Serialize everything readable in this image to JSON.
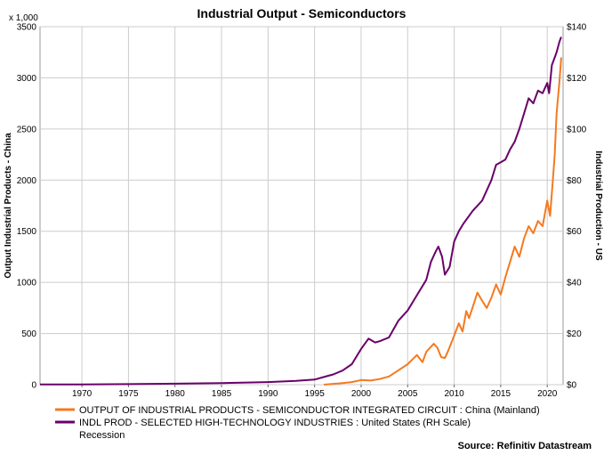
{
  "chart_data": {
    "type": "line",
    "title": "Industrial Output - Semiconductors",
    "ylabel_left": "Output Industrial Products - China",
    "ylabel_right": "Industrial Production - US",
    "left_multiplier": "x 1,000",
    "source": "Source: Refinitiv Datastream",
    "x_range": [
      1965.5,
      2021.7
    ],
    "x_ticks": [
      "1970",
      "1975",
      "1980",
      "1985",
      "1990",
      "1995",
      "2000",
      "2005",
      "2010",
      "2015",
      "2020"
    ],
    "ylim_left": [
      0,
      3500
    ],
    "y_ticks_left": [
      "0",
      "500",
      "1000",
      "1500",
      "2000",
      "2500",
      "3000",
      "3500"
    ],
    "ylim_right": [
      0,
      140
    ],
    "y_ticks_right": [
      "$0",
      "$20",
      "$40",
      "$60",
      "$80",
      "$100",
      "$120",
      "$140"
    ],
    "grid": true,
    "legend_position": "bottom",
    "series": [
      {
        "name": "OUTPUT OF INDUSTRIAL PRODUCTS - SEMICONDUCTOR INTEGRATED CIRCUIT : China (Mainland)",
        "axis": "left",
        "color": "#f47920",
        "points": [
          [
            1996.0,
            0
          ],
          [
            1997.0,
            8
          ],
          [
            1998.0,
            15
          ],
          [
            1999.0,
            25
          ],
          [
            2000.0,
            45
          ],
          [
            2001.0,
            40
          ],
          [
            2002.0,
            55
          ],
          [
            2003.0,
            80
          ],
          [
            2004.0,
            140
          ],
          [
            2005.0,
            200
          ],
          [
            2006.0,
            290
          ],
          [
            2006.6,
            220
          ],
          [
            2007.0,
            320
          ],
          [
            2007.8,
            400
          ],
          [
            2008.2,
            360
          ],
          [
            2008.6,
            270
          ],
          [
            2009.0,
            260
          ],
          [
            2009.4,
            340
          ],
          [
            2010.0,
            480
          ],
          [
            2010.5,
            600
          ],
          [
            2010.9,
            520
          ],
          [
            2011.3,
            720
          ],
          [
            2011.6,
            650
          ],
          [
            2012.0,
            760
          ],
          [
            2012.5,
            900
          ],
          [
            2013.0,
            820
          ],
          [
            2013.5,
            750
          ],
          [
            2014.0,
            850
          ],
          [
            2014.5,
            980
          ],
          [
            2015.0,
            880
          ],
          [
            2015.5,
            1050
          ],
          [
            2016.0,
            1200
          ],
          [
            2016.5,
            1350
          ],
          [
            2017.0,
            1250
          ],
          [
            2017.5,
            1430
          ],
          [
            2018.0,
            1550
          ],
          [
            2018.5,
            1480
          ],
          [
            2019.0,
            1600
          ],
          [
            2019.5,
            1550
          ],
          [
            2020.0,
            1800
          ],
          [
            2020.3,
            1650
          ],
          [
            2020.6,
            2000
          ],
          [
            2020.8,
            2250
          ],
          [
            2021.0,
            2650
          ],
          [
            2021.1,
            2750
          ],
          [
            2021.3,
            2950
          ],
          [
            2021.5,
            3200
          ]
        ]
      },
      {
        "name": "INDL PROD - SELECTED HIGH-TECHNOLOGY INDUSTRIES : United States (RH Scale)",
        "axis": "right",
        "color": "#6a006a",
        "points": [
          [
            1965.5,
            0.1
          ],
          [
            1970.0,
            0.1
          ],
          [
            1975.0,
            0.2
          ],
          [
            1980.0,
            0.4
          ],
          [
            1985.0,
            0.6
          ],
          [
            1990.0,
            1.0
          ],
          [
            1993.0,
            1.5
          ],
          [
            1995.0,
            2.0
          ],
          [
            1996.0,
            3.0
          ],
          [
            1997.0,
            4.0
          ],
          [
            1998.0,
            5.5
          ],
          [
            1999.0,
            8.0
          ],
          [
            2000.0,
            14.0
          ],
          [
            2000.8,
            18.0
          ],
          [
            2001.5,
            16.5
          ],
          [
            2002.0,
            17.0
          ],
          [
            2003.0,
            18.5
          ],
          [
            2004.0,
            25.0
          ],
          [
            2005.0,
            29.0
          ],
          [
            2006.0,
            35.0
          ],
          [
            2007.0,
            41.0
          ],
          [
            2007.5,
            48.0
          ],
          [
            2008.0,
            52.0
          ],
          [
            2008.3,
            54.0
          ],
          [
            2008.7,
            50.0
          ],
          [
            2009.0,
            43.0
          ],
          [
            2009.5,
            46.0
          ],
          [
            2010.0,
            56.0
          ],
          [
            2010.5,
            60.0
          ],
          [
            2011.0,
            63.0
          ],
          [
            2012.0,
            68.0
          ],
          [
            2013.0,
            72.0
          ],
          [
            2014.0,
            80.0
          ],
          [
            2014.5,
            86.0
          ],
          [
            2015.0,
            87.0
          ],
          [
            2015.5,
            88.0
          ],
          [
            2016.0,
            92.0
          ],
          [
            2016.5,
            95.0
          ],
          [
            2017.0,
            100.0
          ],
          [
            2017.5,
            106.0
          ],
          [
            2018.0,
            112.0
          ],
          [
            2018.5,
            110.0
          ],
          [
            2019.0,
            115.0
          ],
          [
            2019.5,
            114.0
          ],
          [
            2020.0,
            118.0
          ],
          [
            2020.2,
            114.0
          ],
          [
            2020.5,
            125.0
          ],
          [
            2020.8,
            128.0
          ],
          [
            2021.0,
            130.0
          ],
          [
            2021.3,
            134.0
          ],
          [
            2021.5,
            136.0
          ]
        ]
      }
    ],
    "extra_legend": "Recession"
  }
}
